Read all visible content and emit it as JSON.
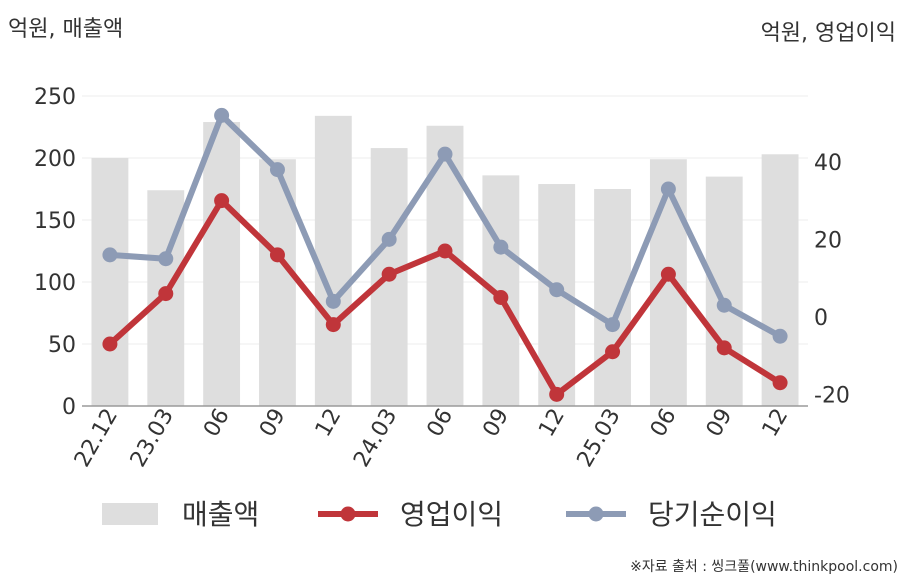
{
  "chart_data": {
    "type": "bar+line",
    "categories": [
      "22.12",
      "23.03",
      "06",
      "09",
      "12",
      "24.03",
      "06",
      "09",
      "12",
      "25.03",
      "06",
      "09",
      "12"
    ],
    "left_axis_title": "억원, 매출액",
    "right_axis_title": "억원, 영업이익",
    "left_ylim": [
      0,
      250
    ],
    "left_ticks": [
      0,
      50,
      100,
      150,
      200,
      250
    ],
    "right_ylim": [
      -23,
      57
    ],
    "right_ticks": [
      -20,
      0,
      20,
      40
    ],
    "grid": true,
    "legend_position": "bottom",
    "series": [
      {
        "name": "매출액",
        "type": "bar",
        "axis": "left",
        "color": "#dedede",
        "values": [
          200,
          174,
          229,
          199,
          234,
          208,
          226,
          186,
          179,
          175,
          199,
          185,
          203
        ]
      },
      {
        "name": "영업이익",
        "type": "line",
        "axis": "right",
        "color": "#c0353a",
        "values": [
          -7,
          6,
          30,
          16,
          -2,
          11,
          17,
          5,
          -20,
          -9,
          11,
          -8,
          -17
        ]
      },
      {
        "name": "당기순이익",
        "type": "line",
        "axis": "right",
        "color": "#8d9bb5",
        "values": [
          16,
          15,
          52,
          38,
          4,
          20,
          42,
          18,
          7,
          -2,
          33,
          3,
          -5
        ]
      }
    ],
    "source": "※자료 출처 : 씽크풀(www.thinkpool.com)"
  }
}
